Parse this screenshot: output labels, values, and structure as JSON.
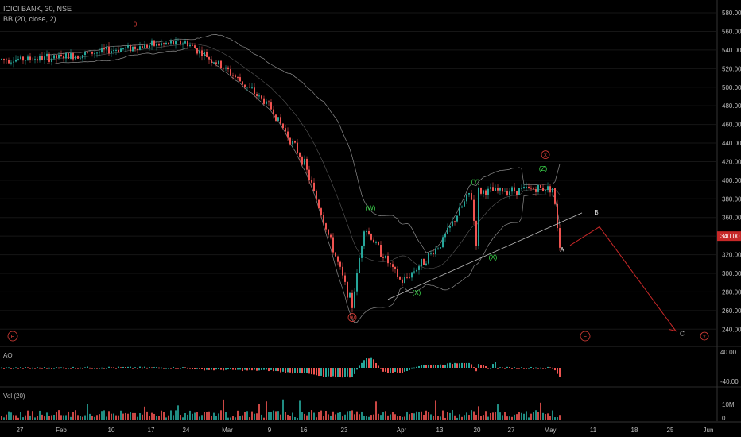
{
  "header": {
    "symbol_line": "ICICI BANK, 30, NSE",
    "indicator_line": "BB (20, close, 2)"
  },
  "colors": {
    "background": "#000000",
    "up": "#26a69a",
    "down": "#ef5350",
    "wave_green": "#3ddc4e",
    "wave_red": "#e0403a",
    "bands": "#8c8c8c",
    "price_tag_bg": "#c62828"
  },
  "chart_data": [
    {
      "type": "candlestick",
      "title": "ICICI BANK, 30, NSE",
      "indicator": "BB (20, close, 2)",
      "x_ticks": [
        "27",
        "Feb",
        "10",
        "17",
        "24",
        "Mar",
        "9",
        "16",
        "23",
        "Apr",
        "13",
        "20",
        "27",
        "May",
        "11",
        "18",
        "25",
        "Jun"
      ],
      "y_ticks": [
        580,
        560,
        540,
        520,
        500,
        480,
        460,
        440,
        420,
        400,
        380,
        360,
        340,
        320,
        300,
        280,
        260,
        240
      ],
      "ylim": [
        224,
        592
      ],
      "last_price": "340.00",
      "price_path": [
        {
          "x": "27",
          "y": 530
        },
        {
          "x": "Feb",
          "y": 532
        },
        {
          "x": "10",
          "y": 540
        },
        {
          "x": "17",
          "y": 545
        },
        {
          "x": "24",
          "y": 548
        },
        {
          "x": "Mar",
          "y": 518
        },
        {
          "x": "9",
          "y": 480
        },
        {
          "x": "16",
          "y": 420
        },
        {
          "x": "23",
          "y": 265
        },
        {
          "x": "23",
          "y": 350
        },
        {
          "x": "Apr",
          "y": 290
        },
        {
          "x": "13",
          "y": 330
        },
        {
          "x": "20",
          "y": 388
        },
        {
          "x": "20",
          "y": 325
        },
        {
          "x": "27",
          "y": 360
        },
        {
          "x": "May",
          "y": 392
        },
        {
          "x": "May",
          "y": 330
        }
      ],
      "wave_labels": [
        {
          "text": "0",
          "x": "17",
          "y": 565,
          "color": "red",
          "circled": false
        },
        {
          "text": "(W)",
          "x": "23",
          "y": 368,
          "color": "green",
          "circled": false
        },
        {
          "text": "W",
          "x": "23",
          "y": 250,
          "color": "red",
          "circled": true
        },
        {
          "text": "(X)",
          "x": "Apr",
          "y": 277,
          "color": "green",
          "circled": false
        },
        {
          "text": "(Y)",
          "x": "20",
          "y": 396,
          "color": "green",
          "circled": false
        },
        {
          "text": "(X)",
          "x": "20",
          "y": 315,
          "color": "green",
          "circled": false
        },
        {
          "text": "(Z)",
          "x": "27",
          "y": 410,
          "color": "green",
          "circled": false
        },
        {
          "text": "X",
          "x": "27",
          "y": 425,
          "color": "red",
          "circled": true
        },
        {
          "text": "A",
          "x": "May",
          "y": 323,
          "color": "white",
          "circled": false
        },
        {
          "text": "B",
          "x": "11",
          "y": 363,
          "color": "white",
          "circled": false
        },
        {
          "text": "C",
          "x": "18",
          "y": 233,
          "color": "white",
          "circled": false
        },
        {
          "text": "Y",
          "x": "25",
          "y": 230,
          "color": "red",
          "circled": true
        }
      ],
      "e_markers": [
        "E",
        "E"
      ],
      "trendline": [
        {
          "x": "23",
          "y": 272
        },
        {
          "x": "May",
          "y": 365
        }
      ],
      "projection": [
        {
          "x": "May",
          "y": 330
        },
        {
          "x": "11",
          "y": 350
        },
        {
          "x": "18",
          "y": 238
        }
      ]
    },
    {
      "type": "bar",
      "title": "AO",
      "y_ticks": [
        "40.00",
        "-40.00"
      ]
    },
    {
      "type": "bar",
      "title": "Vol (20)",
      "y_ticks": [
        "10M",
        "0"
      ]
    }
  ]
}
